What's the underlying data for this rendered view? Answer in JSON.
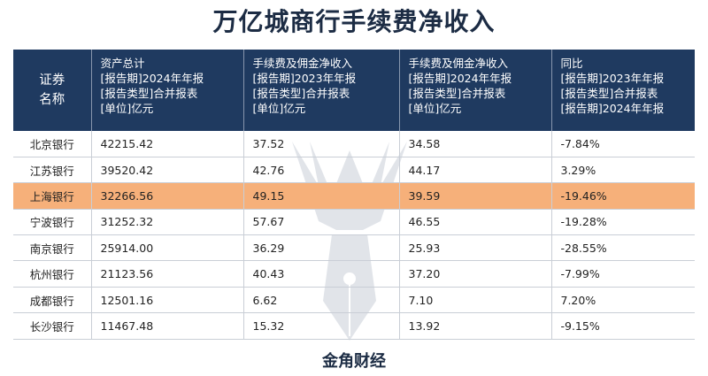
{
  "title": "万亿城商行手续费净收入",
  "footer": "金角财经",
  "chart_data": {
    "type": "table",
    "columns": [
      {
        "lines": [
          "证券",
          "名称"
        ]
      },
      {
        "lines": [
          "资产总计",
          "[报告期]2024年年报",
          "[报告类型]合并报表",
          "[单位]亿元"
        ]
      },
      {
        "lines": [
          "手续费及佣金净收入",
          "[报告期]2023年年报",
          "[报告类型]合并报表",
          "[单位]亿元"
        ]
      },
      {
        "lines": [
          "手续费及佣金净收入",
          "[报告期]2024年年报",
          "[报告类型]合并报表",
          "[单位]亿元"
        ]
      },
      {
        "lines": [
          "同比",
          "[报告期]2023年年报",
          "[报告类型]合并报表",
          "[报告期]2024年年报"
        ]
      }
    ],
    "rows": [
      [
        "北京银行",
        "42215.42",
        "37.52",
        "34.58",
        "-7.84%"
      ],
      [
        "江苏银行",
        "39520.42",
        "42.76",
        "44.17",
        "3.29%"
      ],
      [
        "上海银行",
        "32266.56",
        "49.15",
        "39.59",
        "-19.46%"
      ],
      [
        "宁波银行",
        "31252.32",
        "57.67",
        "46.55",
        "-19.28%"
      ],
      [
        "南京银行",
        "25914.00",
        "36.29",
        "25.93",
        "-28.55%"
      ],
      [
        "杭州银行",
        "21123.56",
        "40.43",
        "37.20",
        "-7.99%"
      ],
      [
        "成都银行",
        "12501.16",
        "6.62",
        "7.10",
        "7.20%"
      ],
      [
        "长沙银行",
        "11467.48",
        "15.32",
        "13.92",
        "-9.15%"
      ]
    ],
    "highlight_row": 2,
    "colors": {
      "header_bg": "#1f3a60",
      "highlight": "#f6b07a",
      "title": "#1c2c44"
    }
  }
}
